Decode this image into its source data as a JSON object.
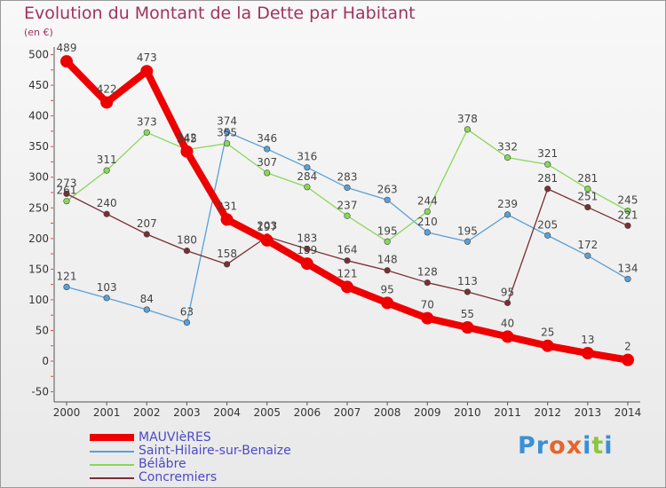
{
  "title": "Evolution du Montant de la Dette par Habitant",
  "subtitle": "(en €)",
  "brand": {
    "text": "Proxiti",
    "letters": [
      "P",
      "r",
      "o",
      "x",
      "i",
      "t",
      "i"
    ],
    "colors": [
      "#3b8fd6",
      "#3b8fd6",
      "#e8642a",
      "#e8642a",
      "#3b8fd6",
      "#8cc63f",
      "#3b8fd6"
    ]
  },
  "chart_data": {
    "type": "line",
    "title": "Evolution du Montant de la Dette par Habitant",
    "ylabel": "(en €)",
    "x": [
      "2000",
      "2001",
      "2002",
      "2003",
      "2004",
      "2005",
      "2006",
      "2007",
      "2008",
      "2009",
      "2010",
      "2011",
      "2012",
      "2013",
      "2014"
    ],
    "ylim": [
      -50,
      500
    ],
    "yticks": [
      -50,
      0,
      50,
      100,
      150,
      200,
      250,
      300,
      350,
      400,
      450,
      500
    ],
    "grid": false,
    "legend_position": "bottom",
    "series": [
      {
        "name": "MAUVIèRES",
        "color": "#ee0000",
        "width": 8,
        "marker": 7,
        "values": [
          489,
          422,
          473,
          342,
          231,
          197,
          159,
          121,
          95,
          70,
          55,
          40,
          25,
          13,
          2
        ],
        "labels": [
          "489",
          "422",
          "473",
          "342",
          "231",
          "197",
          "159",
          "121",
          "95",
          "70",
          "55",
          "40",
          "25",
          "13",
          "2"
        ]
      },
      {
        "name": "Saint-Hilaire-sur-Benaize",
        "color": "#5aa0d8",
        "width": 1.3,
        "marker": 3.3,
        "values": [
          121,
          103,
          84,
          63,
          374,
          346,
          316,
          283,
          263,
          210,
          195,
          239,
          205,
          172,
          134
        ],
        "labels": [
          "121",
          "103",
          "84",
          "63",
          "374",
          "346",
          "316",
          "283",
          "263",
          "210",
          "195",
          "239",
          "205",
          "172",
          "134"
        ]
      },
      {
        "name": "Bélâbre",
        "color": "#88d858",
        "width": 1.3,
        "marker": 3.3,
        "values": [
          261,
          311,
          373,
          345,
          355,
          307,
          284,
          237,
          195,
          244,
          378,
          332,
          321,
          281,
          245
        ],
        "labels": [
          "261",
          "311",
          "373",
          "345",
          "355",
          "307",
          "284",
          "237",
          "195",
          "244",
          "378",
          "332",
          "321",
          "281",
          "245"
        ]
      },
      {
        "name": "Concremiers",
        "color": "#7a2e34",
        "width": 1.3,
        "marker": 3.3,
        "values": [
          273,
          240,
          207,
          180,
          158,
          203,
          183,
          164,
          148,
          128,
          113,
          95,
          281,
          251,
          221
        ],
        "labels": [
          "273",
          "240",
          "207",
          "180",
          "158",
          "203",
          "183",
          "164",
          "148",
          "128",
          "113",
          "95",
          "281",
          "251",
          "221"
        ]
      }
    ]
  }
}
